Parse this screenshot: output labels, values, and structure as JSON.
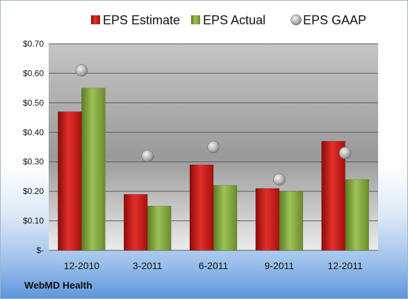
{
  "company": "WebMD Health",
  "chart_data": {
    "type": "bar",
    "categories": [
      "12-2010",
      "3-2011",
      "6-2011",
      "9-2011",
      "12-2011"
    ],
    "series": [
      {
        "name": "EPS Estimate",
        "kind": "bar",
        "color": "#cc1c1c",
        "values": [
          0.47,
          0.19,
          0.29,
          0.21,
          0.37
        ]
      },
      {
        "name": "EPS Actual",
        "kind": "bar",
        "color": "#7aa03a",
        "values": [
          0.55,
          0.15,
          0.22,
          0.2,
          0.24
        ]
      },
      {
        "name": "EPS GAAP",
        "kind": "marker",
        "color": "#a8a8a8",
        "values": [
          0.61,
          0.32,
          0.35,
          0.24,
          0.33
        ]
      }
    ],
    "ylim": [
      0,
      0.7
    ],
    "yticks": [
      0,
      0.1,
      0.2,
      0.3,
      0.4,
      0.5,
      0.6,
      0.7
    ],
    "ytick_labels": [
      "$-",
      "$0.10",
      "$0.20",
      "$0.30",
      "$0.40",
      "$0.50",
      "$0.60",
      "$0.70"
    ],
    "legend_position": "top",
    "grid": true
  }
}
